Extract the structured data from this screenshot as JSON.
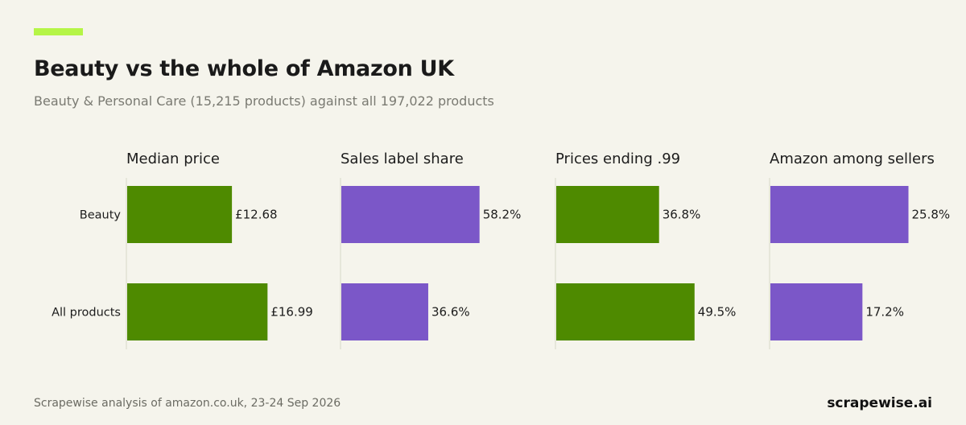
{
  "header": {
    "title": "Beauty vs the whole of Amazon UK",
    "subtitle": "Beauty & Personal Care (15,215 products) against all 197,022 products"
  },
  "footer": {
    "source": "Scrapewise analysis of amazon.co.uk, 23-24 Sep 2026",
    "brand": "scrapewise.ai"
  },
  "colors": {
    "green": "#4e8a00",
    "purple": "#7b57c8",
    "accent": "#b5f547"
  },
  "chart_data": [
    {
      "type": "bar",
      "title": "Median price",
      "categories": [
        "Beauty",
        "All products"
      ],
      "values": [
        12.68,
        16.99
      ],
      "labels": [
        "£12.68",
        "£16.99"
      ],
      "color": "#4e8a00",
      "xlim": [
        0,
        23
      ]
    },
    {
      "type": "bar",
      "title": "Sales label share",
      "categories": [
        "Beauty",
        "All products"
      ],
      "values": [
        58.2,
        36.6
      ],
      "labels": [
        "58.2%",
        "36.6%"
      ],
      "color": "#7b57c8",
      "xlim": [
        0,
        80
      ]
    },
    {
      "type": "bar",
      "title": "Prices ending .99",
      "categories": [
        "Beauty",
        "All products"
      ],
      "values": [
        36.8,
        49.5
      ],
      "labels": [
        "36.8%",
        "49.5%"
      ],
      "color": "#4e8a00",
      "xlim": [
        0,
        68
      ]
    },
    {
      "type": "bar",
      "title": "Amazon among sellers",
      "categories": [
        "Beauty",
        "All products"
      ],
      "values": [
        25.8,
        17.2
      ],
      "labels": [
        "25.8%",
        "17.2%"
      ],
      "color": "#7b57c8",
      "xlim": [
        0,
        35.5
      ]
    }
  ]
}
